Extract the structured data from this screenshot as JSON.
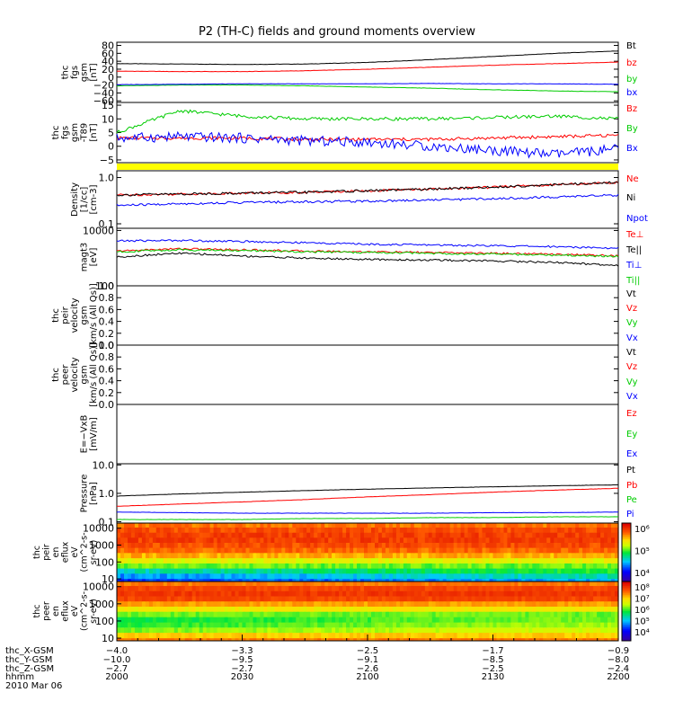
{
  "title": "P2 (TH-C) fields and ground moments overview",
  "chart_data": [
    {
      "type": "line",
      "panel": "fgs-gsm",
      "ylabel_lines": [
        "thc",
        "fgs",
        "gsm",
        "[nT]"
      ],
      "ytick_labels": [
        "80",
        "60",
        "40",
        "20",
        "0",
        "−20",
        "−40",
        "−60"
      ],
      "ytick_values": [
        80,
        60,
        40,
        20,
        0,
        -20,
        -40,
        -60
      ],
      "ylim": [
        -64,
        88
      ],
      "series": [
        {
          "name": "Bt",
          "color": "#000000",
          "values": [
            34,
            33,
            32,
            33,
            37,
            44,
            52,
            60,
            66
          ]
        },
        {
          "name": "bz",
          "color": "#ff0000",
          "values": [
            15,
            14,
            14,
            16,
            20,
            25,
            30,
            34,
            38
          ]
        },
        {
          "name": "by",
          "color": "#00cc00",
          "values": [
            -22,
            -20,
            -20,
            -22,
            -25,
            -28,
            -32,
            -35,
            -37
          ]
        },
        {
          "name": "bx",
          "color": "#0000ff",
          "values": [
            -19,
            -18,
            -17,
            -17,
            -17,
            -16,
            -17,
            -17,
            -18
          ]
        }
      ]
    },
    {
      "type": "line",
      "panel": "fgs-gsm-t89",
      "ylabel_lines": [
        "thc",
        "fgs",
        "gsm",
        "-T89",
        "[nT]"
      ],
      "ytick_labels": [
        "15",
        "10",
        "5",
        "0",
        "−5"
      ],
      "ytick_values": [
        15,
        10,
        5,
        0,
        -5
      ],
      "ylim": [
        -6,
        16
      ],
      "series": [
        {
          "name": "Bz",
          "color": "#ff0000",
          "values": [
            3,
            3,
            3,
            2.5,
            2.5,
            2.5,
            3,
            3.5,
            4
          ]
        },
        {
          "name": "By",
          "color": "#00cc00",
          "values": [
            5,
            13,
            11,
            10,
            10,
            10,
            10.5,
            11,
            10
          ]
        },
        {
          "name": "Bx",
          "color": "#0000ff",
          "values": [
            3,
            3.5,
            3,
            2,
            1.5,
            0,
            -1.5,
            -3,
            -1
          ]
        }
      ]
    },
    {
      "type": "line",
      "panel": "density",
      "ylabel_lines": [
        "Density",
        "[1/cc]",
        "[cm-3]"
      ],
      "ytick_labels": [
        "1.0",
        "0.1"
      ],
      "ytick_values": [
        1.0,
        0.1
      ],
      "ylim": [
        0.08,
        1.4
      ],
      "log_scale": true,
      "series": [
        {
          "name": "Ne",
          "color": "#ff0000",
          "values": [
            0.42,
            0.44,
            0.46,
            0.48,
            0.52,
            0.56,
            0.62,
            0.7,
            0.78
          ]
        },
        {
          "name": "Ni",
          "color": "#000000",
          "values": [
            0.42,
            0.44,
            0.46,
            0.48,
            0.52,
            0.56,
            0.62,
            0.7,
            0.78
          ]
        },
        {
          "name": "Npot",
          "color": "#0000ff",
          "values": [
            0.25,
            0.27,
            0.29,
            0.3,
            0.31,
            0.33,
            0.35,
            0.38,
            0.42
          ]
        }
      ]
    },
    {
      "type": "line",
      "panel": "temperature",
      "ylabel_lines": [
        "magt3",
        "[eV]"
      ],
      "ytick_labels": [
        "10000",
        "100"
      ],
      "ytick_values": [
        10000,
        100
      ],
      "ylim": [
        100,
        12000
      ],
      "log_scale": true,
      "series": [
        {
          "name": "Te⊥",
          "color": "#ff0000",
          "values": [
            1800,
            2200,
            2000,
            1800,
            1700,
            1600,
            1500,
            1400,
            1200
          ]
        },
        {
          "name": "Te||",
          "color": "#000000",
          "values": [
            1100,
            1500,
            1200,
            1000,
            900,
            850,
            800,
            700,
            550
          ]
        },
        {
          "name": "Ti⊥",
          "color": "#0000ff",
          "values": [
            4200,
            4400,
            4000,
            3600,
            3200,
            3000,
            2800,
            2600,
            2300
          ]
        },
        {
          "name": "Ti||",
          "color": "#00cc00",
          "values": [
            1700,
            2000,
            1900,
            1700,
            1600,
            1500,
            1400,
            1300,
            1150
          ]
        }
      ]
    },
    {
      "type": "line",
      "panel": "peir-velocity",
      "ylabel_lines": [
        "thc",
        "peir",
        "velocity",
        "gsm",
        "[km/s (All Qs)]"
      ],
      "ytick_labels": [
        "1.0",
        "0.8",
        "0.6",
        "0.4",
        "0.2",
        "0.0"
      ],
      "ytick_values": [
        1.0,
        0.8,
        0.6,
        0.4,
        0.2,
        0.0
      ],
      "ylim": [
        0,
        1
      ],
      "series": [
        {
          "name": "Vt",
          "color": "#000000",
          "values": []
        },
        {
          "name": "Vz",
          "color": "#ff0000",
          "values": []
        },
        {
          "name": "Vy",
          "color": "#00cc00",
          "values": []
        },
        {
          "name": "Vx",
          "color": "#0000ff",
          "values": []
        }
      ]
    },
    {
      "type": "line",
      "panel": "peer-velocity",
      "ylabel_lines": [
        "thc",
        "peer",
        "velocity",
        "gsm",
        "[km/s (All Qs)]"
      ],
      "ytick_labels": [
        "1.0",
        "0.8",
        "0.6",
        "0.4",
        "0.2",
        "0.0"
      ],
      "ytick_values": [
        1.0,
        0.8,
        0.6,
        0.4,
        0.2,
        0.0
      ],
      "ylim": [
        0,
        1
      ],
      "series": [
        {
          "name": "Vt",
          "color": "#000000",
          "values": []
        },
        {
          "name": "Vz",
          "color": "#ff0000",
          "values": []
        },
        {
          "name": "Vy",
          "color": "#00cc00",
          "values": []
        },
        {
          "name": "Vx",
          "color": "#0000ff",
          "values": []
        }
      ]
    },
    {
      "type": "line",
      "panel": "efield",
      "ylabel_lines": [
        "E=−VxB",
        "[mV/m]"
      ],
      "ytick_labels": [],
      "ytick_values": [],
      "ylim": [
        0,
        1
      ],
      "series": [
        {
          "name": "Ez",
          "color": "#ff0000",
          "values": []
        },
        {
          "name": "Ey",
          "color": "#00cc00",
          "values": []
        },
        {
          "name": "Ex",
          "color": "#0000ff",
          "values": []
        }
      ]
    },
    {
      "type": "line",
      "panel": "pressure",
      "ylabel_lines": [
        "Pressure",
        "[nPa]"
      ],
      "ytick_labels": [
        "10.0",
        "1.0",
        "0.1"
      ],
      "ytick_values": [
        10.0,
        1.0,
        0.1
      ],
      "ylim": [
        0.09,
        11
      ],
      "log_scale": true,
      "series": [
        {
          "name": "Pt",
          "color": "#000000",
          "values": [
            0.8,
            0.95,
            1.1,
            1.25,
            1.4,
            1.55,
            1.7,
            1.85,
            2.0
          ]
        },
        {
          "name": "Pb",
          "color": "#ff0000",
          "values": [
            0.35,
            0.42,
            0.5,
            0.6,
            0.75,
            0.9,
            1.1,
            1.3,
            1.5
          ]
        },
        {
          "name": "Pe",
          "color": "#00cc00",
          "values": [
            0.12,
            0.12,
            0.12,
            0.13,
            0.13,
            0.14,
            0.14,
            0.15,
            0.15
          ]
        },
        {
          "name": "Pi",
          "color": "#0000ff",
          "values": [
            0.22,
            0.21,
            0.2,
            0.2,
            0.2,
            0.2,
            0.21,
            0.21,
            0.22
          ]
        }
      ]
    },
    {
      "type": "heatmap",
      "panel": "peir-en-eflux",
      "ylabel_lines": [
        "thc",
        "peir",
        "en",
        "eflux",
        "eV",
        "(cm^2-s-",
        "sr-eV)"
      ],
      "ytick_labels": [
        "10000",
        "1000",
        "100",
        "10"
      ],
      "ytick_values": [
        10000,
        1000,
        100,
        10
      ],
      "ylim": [
        7,
        20000
      ],
      "log_scale": true,
      "colorbar_labels": [
        "10⁶",
        "10⁵",
        "10⁴"
      ],
      "colorbar_range": [
        3000,
        3000000
      ],
      "energy_bins": [
        7,
        15,
        30,
        60,
        120,
        250,
        500,
        1000,
        2000,
        4000,
        8000,
        16000
      ],
      "flux_profile": [
        20000,
        35000,
        70000,
        150000,
        300000,
        600000,
        1000000,
        1300000,
        1500000,
        1500000,
        1300000,
        900000
      ]
    },
    {
      "type": "heatmap",
      "panel": "peer-en-eflux",
      "ylabel_lines": [
        "thc",
        "peer",
        "en",
        "eflux",
        "eV",
        "(cm^2-s-",
        "sr-eV)"
      ],
      "ytick_labels": [
        "10000",
        "1000",
        "100",
        "10"
      ],
      "ytick_values": [
        10000,
        1000,
        100,
        10
      ],
      "ylim": [
        7,
        20000
      ],
      "log_scale": true,
      "colorbar_labels": [
        "10⁸",
        "10⁷",
        "10⁶",
        "10⁵",
        "10⁴"
      ],
      "colorbar_range": [
        5000,
        200000000
      ],
      "energy_bins": [
        7,
        15,
        30,
        60,
        120,
        250,
        500,
        1000,
        2000,
        4000,
        8000,
        16000
      ],
      "flux_profile": [
        30000000,
        12000000,
        2000000,
        1200000,
        900000,
        2000000,
        8000000,
        20000000,
        60000000,
        80000000,
        60000000,
        30000000
      ]
    }
  ],
  "x_axis": {
    "rows": [
      {
        "label": "thc_X-GSM",
        "values": [
          "−4.0",
          "−3.3",
          "−2.5",
          "−1.7",
          "−0.9"
        ]
      },
      {
        "label": "thc_Y-GSM",
        "values": [
          "−10.0",
          "−9.5",
          "−9.1",
          "−8.5",
          "−8.0"
        ]
      },
      {
        "label": "thc_Z-GSM",
        "values": [
          "−2.7",
          "−2.7",
          "−2.6",
          "−2.5",
          "−2.4"
        ]
      },
      {
        "label": "hhmm",
        "values": [
          "2000",
          "2030",
          "2100",
          "2130",
          "2200"
        ]
      }
    ],
    "date": "2010 Mar 06"
  }
}
